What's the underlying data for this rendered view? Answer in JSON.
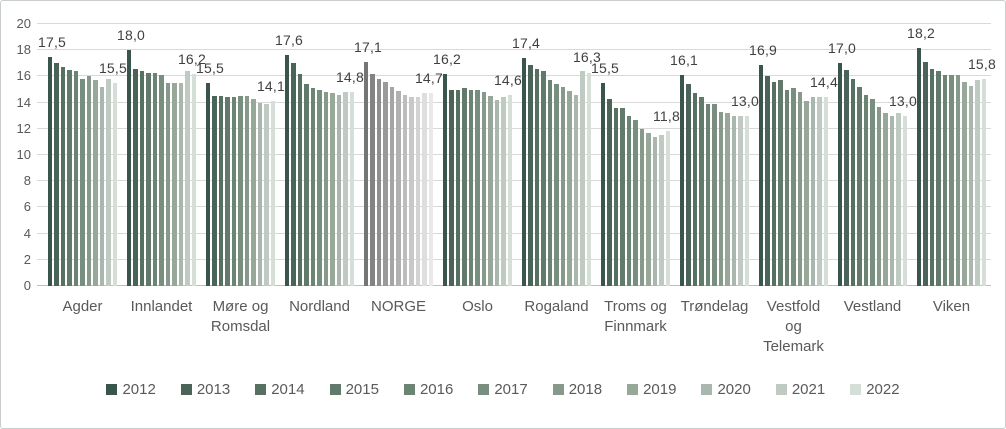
{
  "chart_data": {
    "type": "bar",
    "title": "",
    "xlabel": "",
    "ylabel": "",
    "decimal_separator": ",",
    "y_axis": {
      "min": 0,
      "max": 20,
      "step": 2,
      "tick_labels": [
        "0",
        "2",
        "4",
        "6",
        "8",
        "10",
        "12",
        "14",
        "16",
        "18",
        "20"
      ]
    },
    "grid": true,
    "legend_position": "bottom",
    "legend": [
      "2012",
      "2013",
      "2014",
      "2015",
      "2016",
      "2017",
      "2018",
      "2019",
      "2020",
      "2021",
      "2022"
    ],
    "series_years": [
      "2012",
      "2013",
      "2014",
      "2015",
      "2016",
      "2017",
      "2018",
      "2019",
      "2020",
      "2021",
      "2022"
    ],
    "colors": {
      "green_palette": [
        "#3a564c",
        "#4a645a",
        "#567061",
        "#617a6b",
        "#6c8474",
        "#788e7f",
        "#87998a",
        "#98a898",
        "#a9b7ae",
        "#bfcac2",
        "#d5ded7"
      ],
      "gray_palette": [
        "#757575",
        "#838383",
        "#8f8f8f",
        "#9a9a9a",
        "#a5a5a5",
        "#b1b1b1",
        "#bdbdbd",
        "#c8c8c8",
        "#d3d3d3",
        "#dedede",
        "#e9e9e9"
      ],
      "gridline": "#d9d9d9",
      "axis_text": "#595959",
      "data_label_text": "#404040"
    },
    "groups": [
      {
        "name": "Agder",
        "label_lines": [
          "Agder"
        ],
        "palette": "green",
        "values": [
          17.5,
          17.0,
          16.7,
          16.5,
          16.4,
          15.8,
          16.0,
          15.7,
          15.2,
          15.8,
          15.5
        ],
        "first_label": "17,5",
        "last_label": "15,5"
      },
      {
        "name": "Innlandet",
        "label_lines": [
          "Innlandet"
        ],
        "palette": "green",
        "values": [
          18.0,
          16.6,
          16.4,
          16.3,
          16.3,
          16.1,
          15.5,
          15.5,
          15.5,
          16.4,
          16.2
        ],
        "first_label": "18,0",
        "last_label": "16,2"
      },
      {
        "name": "Møre og Romsdal",
        "label_lines": [
          "Møre og",
          "Romsdal"
        ],
        "palette": "green",
        "values": [
          15.5,
          14.5,
          14.5,
          14.4,
          14.4,
          14.5,
          14.5,
          14.3,
          14.0,
          13.9,
          14.1
        ],
        "first_label": "15,5",
        "last_label": "14,1"
      },
      {
        "name": "Nordland",
        "label_lines": [
          "Nordland"
        ],
        "palette": "green",
        "values": [
          17.6,
          17.0,
          16.2,
          15.4,
          15.1,
          15.0,
          14.8,
          14.7,
          14.6,
          14.8,
          14.8
        ],
        "first_label": "17,6",
        "last_label": "14,8"
      },
      {
        "name": "NORGE",
        "label_lines": [
          "NORGE"
        ],
        "palette": "gray",
        "values": [
          17.1,
          16.2,
          15.8,
          15.6,
          15.2,
          14.9,
          14.6,
          14.4,
          14.4,
          14.7,
          14.7
        ],
        "first_label": "17,1",
        "last_label": "14,7"
      },
      {
        "name": "Oslo",
        "label_lines": [
          "Oslo"
        ],
        "palette": "green",
        "values": [
          16.2,
          15.0,
          15.0,
          15.1,
          15.0,
          15.0,
          14.8,
          14.5,
          14.2,
          14.4,
          14.6
        ],
        "first_label": "16,2",
        "last_label": "14,6"
      },
      {
        "name": "Rogaland",
        "label_lines": [
          "Rogaland"
        ],
        "palette": "green",
        "values": [
          17.4,
          16.9,
          16.6,
          16.4,
          15.7,
          15.4,
          15.2,
          14.9,
          14.6,
          16.4,
          16.3
        ],
        "first_label": "17,4",
        "last_label": "16,3"
      },
      {
        "name": "Troms og Finnmark",
        "label_lines": [
          "Troms og",
          "Finnmark"
        ],
        "palette": "green",
        "values": [
          15.5,
          14.3,
          13.6,
          13.6,
          13.0,
          12.7,
          12.0,
          11.7,
          11.4,
          11.5,
          11.8
        ],
        "first_label": "15,5",
        "last_label": "11,8"
      },
      {
        "name": "Trøndelag",
        "label_lines": [
          "Trøndelag"
        ],
        "palette": "green",
        "values": [
          16.1,
          15.4,
          14.7,
          14.4,
          13.9,
          13.9,
          13.3,
          13.2,
          13.0,
          13.0,
          13.0
        ],
        "first_label": "16,1",
        "last_label": "13,0"
      },
      {
        "name": "Vestfold og Telemark",
        "label_lines": [
          "Vestfold",
          "og",
          "Telemark"
        ],
        "palette": "green",
        "values": [
          16.9,
          16.0,
          15.6,
          15.7,
          15.0,
          15.1,
          14.8,
          14.1,
          14.4,
          14.4,
          14.4
        ],
        "first_label": "16,9",
        "last_label": "14,4"
      },
      {
        "name": "Vestland",
        "label_lines": [
          "Vestland"
        ],
        "palette": "green",
        "values": [
          17.0,
          16.5,
          15.8,
          15.2,
          14.6,
          14.3,
          13.7,
          13.2,
          13.0,
          13.2,
          13.0
        ],
        "first_label": "17,0",
        "last_label": "13,0"
      },
      {
        "name": "Viken",
        "label_lines": [
          "Viken"
        ],
        "palette": "green",
        "values": [
          18.2,
          17.1,
          16.6,
          16.4,
          16.1,
          16.1,
          16.1,
          15.6,
          15.3,
          15.7,
          15.8
        ],
        "first_label": "18,2",
        "last_label": "15,8"
      }
    ]
  }
}
